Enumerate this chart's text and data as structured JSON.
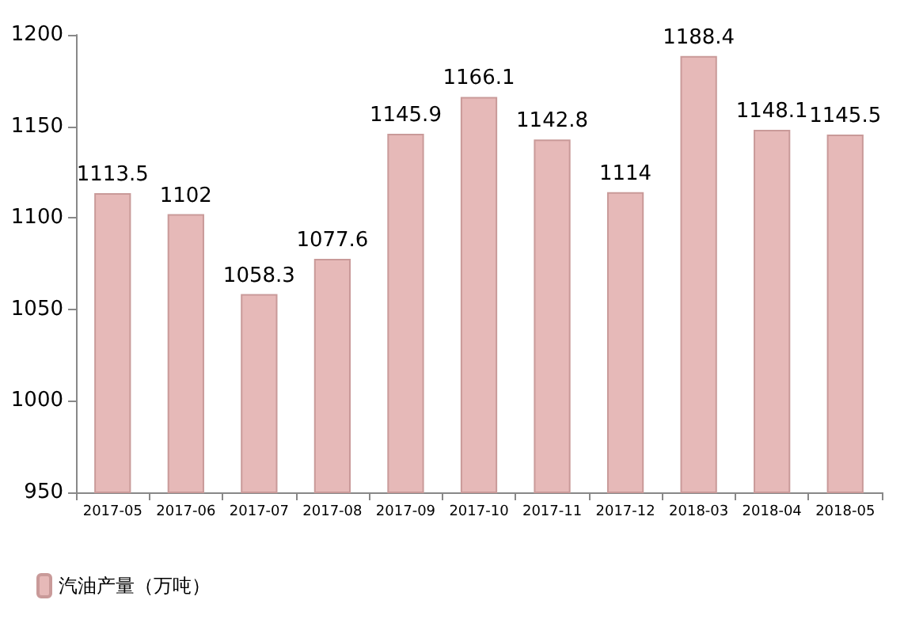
{
  "chart_data": {
    "type": "bar",
    "categories": [
      "2017-05",
      "2017-06",
      "2017-07",
      "2017-08",
      "2017-09",
      "2017-10",
      "2017-11",
      "2017-12",
      "2018-03",
      "2018-04",
      "2018-05"
    ],
    "series": [
      {
        "name": "汽油产量（万吨）",
        "color": "#e6b9b8",
        "values": [
          1113.5,
          1102,
          1058.3,
          1077.6,
          1145.9,
          1166.1,
          1142.8,
          1114,
          1188.4,
          1148.1,
          1145.5
        ]
      }
    ],
    "ylim": [
      950,
      1200
    ],
    "yticks": [
      950,
      1000,
      1050,
      1100,
      1150,
      1200
    ],
    "grid": false,
    "legend": "bottom left",
    "data_labels": true
  }
}
